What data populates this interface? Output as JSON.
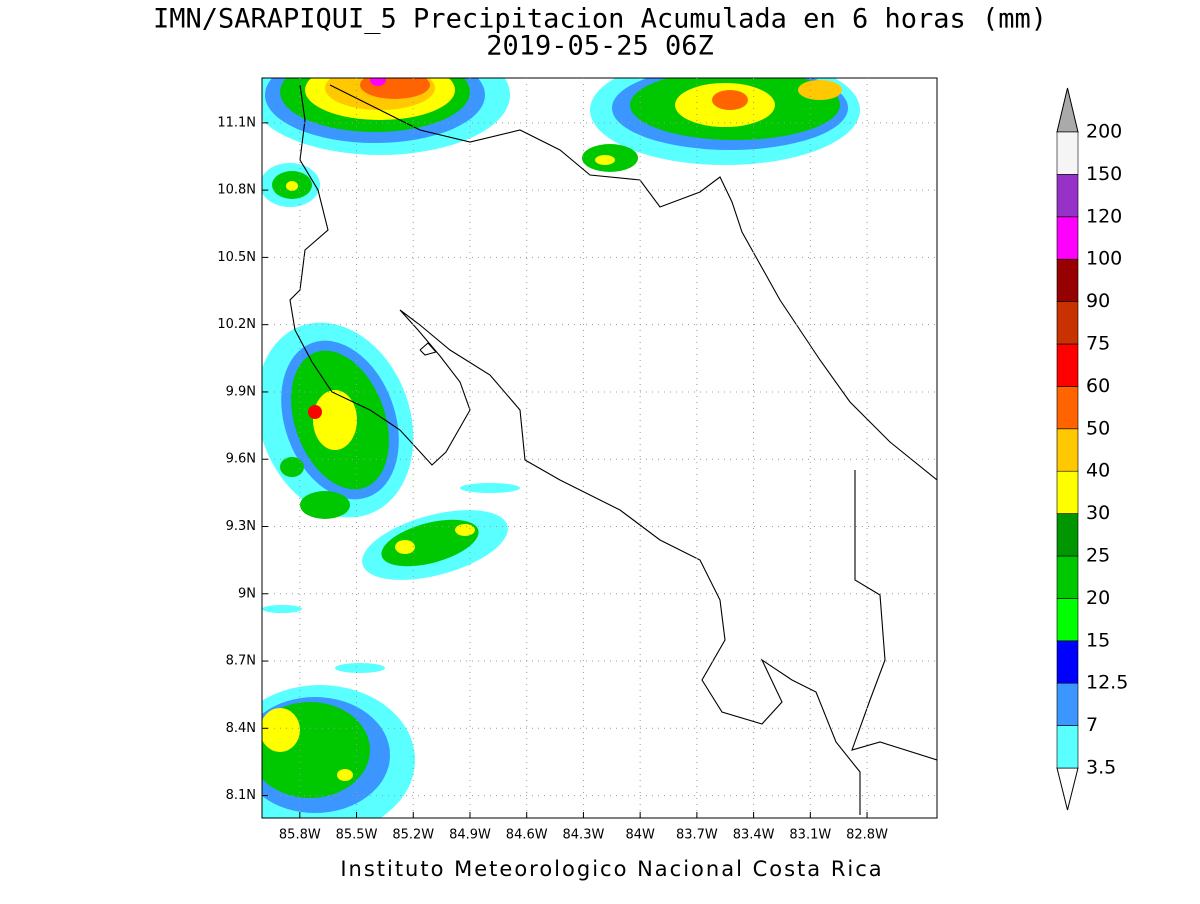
{
  "map": {
    "title": "IMN/SARAPIQUI_5 Precipitacion Acumulada en 6 horas (mm)",
    "subtitle": "2019-05-25 06Z",
    "credit": "Instituto Meteorologico Nacional Costa Rica",
    "xlim": [
      -86.0,
      -82.43
    ],
    "ylim": [
      8.0,
      11.3
    ],
    "xticks": [
      {
        "value": -85.8,
        "label": "85.8W"
      },
      {
        "value": -85.5,
        "label": "85.5W"
      },
      {
        "value": -85.2,
        "label": "85.2W"
      },
      {
        "value": -84.9,
        "label": "84.9W"
      },
      {
        "value": -84.6,
        "label": "84.6W"
      },
      {
        "value": -84.3,
        "label": "84.3W"
      },
      {
        "value": -84.0,
        "label": "84W"
      },
      {
        "value": -83.7,
        "label": "83.7W"
      },
      {
        "value": -83.4,
        "label": "83.4W"
      },
      {
        "value": -83.1,
        "label": "83.1W"
      },
      {
        "value": -82.8,
        "label": "82.8W"
      }
    ],
    "yticks": [
      {
        "value": 11.1,
        "label": "11.1N"
      },
      {
        "value": 10.8,
        "label": "10.8N"
      },
      {
        "value": 10.5,
        "label": "10.5N"
      },
      {
        "value": 10.2,
        "label": "10.2N"
      },
      {
        "value": 9.9,
        "label": "9.9N"
      },
      {
        "value": 9.6,
        "label": "9.6N"
      },
      {
        "value": 9.3,
        "label": "9.3N"
      },
      {
        "value": 9.0,
        "label": "9N"
      },
      {
        "value": 8.7,
        "label": "8.7N"
      },
      {
        "value": 8.4,
        "label": "8.4N"
      },
      {
        "value": 8.1,
        "label": "8.1N"
      }
    ],
    "grid": true,
    "colorbar": {
      "levels": [
        3.5,
        7,
        12.5,
        15,
        20,
        25,
        30,
        40,
        50,
        60,
        75,
        90,
        100,
        120,
        150,
        200
      ],
      "colors": [
        "#5affff",
        "#3c96ff",
        "#0000ff",
        "#00ff00",
        "#00c800",
        "#009600",
        "#ffff00",
        "#ffc800",
        "#ff6400",
        "#ff0000",
        "#c83200",
        "#960000",
        "#ff00ff",
        "#9632c8",
        "#f5f5f5"
      ],
      "under_color": "#ffffff",
      "over_color": "#aaaaaa"
    }
  }
}
